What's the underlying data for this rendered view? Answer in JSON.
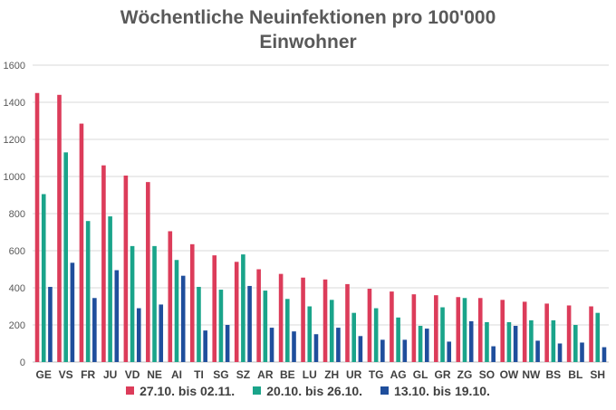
{
  "chart_data": {
    "type": "bar",
    "title": "Wöchentliche Neuinfektionen pro 100'000 Einwohner",
    "title_lines": [
      "Wöchentliche Neuinfektionen pro 100'000",
      "Einwohner"
    ],
    "xlabel": "",
    "ylabel": "",
    "ylim": [
      0,
      1600
    ],
    "yticks": [
      0,
      200,
      400,
      600,
      800,
      1000,
      1200,
      1400,
      1600
    ],
    "ytick_labels": [
      "0",
      "200",
      "400",
      "600",
      "800",
      "1000",
      "1200",
      "1400",
      "1600"
    ],
    "grid": true,
    "legend_position": "bottom",
    "categories": [
      "GE",
      "VS",
      "FR",
      "JU",
      "VD",
      "NE",
      "AI",
      "TI",
      "SG",
      "SZ",
      "AR",
      "BE",
      "LU",
      "ZH",
      "UR",
      "TG",
      "AG",
      "GL",
      "GR",
      "ZG",
      "SO",
      "OW",
      "NW",
      "BS",
      "BL",
      "SH"
    ],
    "series": [
      {
        "name": "27.10. bis 02.11.",
        "color": "#dc3c5a",
        "values": [
          1450,
          1440,
          1285,
          1060,
          1005,
          970,
          705,
          635,
          575,
          540,
          500,
          475,
          455,
          445,
          420,
          395,
          380,
          365,
          360,
          350,
          345,
          335,
          325,
          315,
          305,
          300
        ]
      },
      {
        "name": "20.10. bis 26.10.",
        "color": "#1aa48a",
        "values": [
          905,
          1130,
          760,
          785,
          625,
          625,
          550,
          405,
          390,
          580,
          385,
          340,
          300,
          335,
          265,
          290,
          240,
          195,
          295,
          345,
          215,
          215,
          225,
          225,
          200,
          265
        ]
      },
      {
        "name": "13.10. bis 19.10.",
        "color": "#1f4e9c",
        "values": [
          405,
          535,
          345,
          495,
          290,
          310,
          465,
          170,
          200,
          410,
          185,
          165,
          150,
          185,
          140,
          120,
          120,
          180,
          110,
          220,
          85,
          195,
          115,
          100,
          105,
          80
        ]
      }
    ]
  }
}
